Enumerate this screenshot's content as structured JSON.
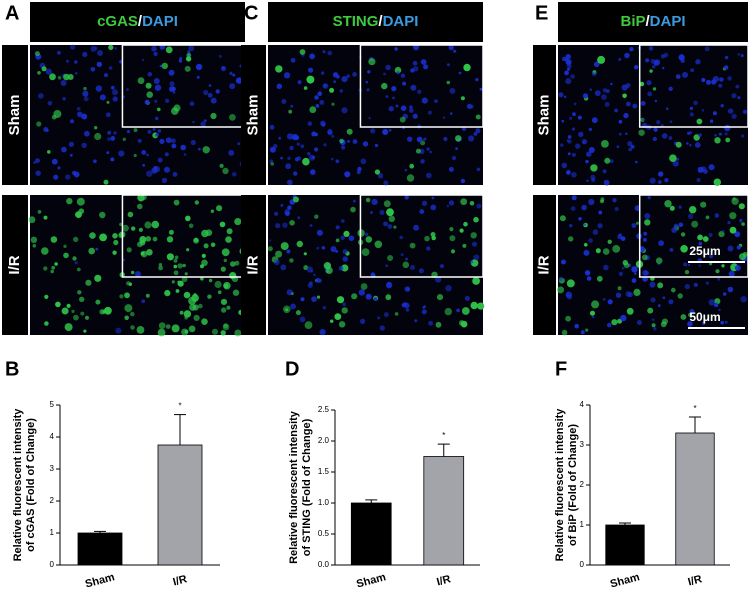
{
  "panels": {
    "labels": [
      "A",
      "B",
      "C",
      "D",
      "E",
      "F"
    ],
    "headers": [
      {
        "marker": "cGAS",
        "sep": "/",
        "stain": "DAPI"
      },
      {
        "marker": "STING",
        "sep": "/",
        "stain": "DAPI"
      },
      {
        "marker": "BiP",
        "sep": "/",
        "stain": "DAPI"
      }
    ],
    "rows": [
      "Sham",
      "I/R"
    ],
    "scale_bars": [
      "25μm",
      "50μm"
    ]
  },
  "chart_data": [
    {
      "type": "bar",
      "ylabel": [
        "Relative fluorescent intensity",
        "of cGAS (Fold of Change)"
      ],
      "categories": [
        "Sham",
        "I/R"
      ],
      "values": [
        1.0,
        3.75
      ],
      "errors": [
        0.05,
        0.95
      ],
      "colors": [
        "#000000",
        "#a3a3aa"
      ],
      "annotations": [
        null,
        "*"
      ],
      "ylim": [
        0,
        5
      ],
      "yticks": [
        0,
        1,
        2,
        3,
        4,
        5
      ]
    },
    {
      "type": "bar",
      "ylabel": [
        "Relative fluorescent intensity",
        "of STING (Fold of Change)"
      ],
      "categories": [
        "Sham",
        "I/R"
      ],
      "values": [
        1.0,
        1.75
      ],
      "errors": [
        0.05,
        0.2
      ],
      "colors": [
        "#000000",
        "#a3a3aa"
      ],
      "annotations": [
        null,
        "*"
      ],
      "ylim": [
        0,
        2.5
      ],
      "yticks": [
        {
          "value": 0,
          "label": "0.0"
        },
        0.5,
        {
          "value": 1,
          "label": "1.0"
        },
        1.5,
        {
          "value": 2,
          "label": "2.0"
        },
        2.5
      ]
    },
    {
      "type": "bar",
      "ylabel": [
        "Relative fluorescent intensity",
        "of BiP (Fold of Change)"
      ],
      "categories": [
        "Sham",
        "I/R"
      ],
      "values": [
        1.0,
        3.3
      ],
      "errors": [
        0.05,
        0.4
      ],
      "colors": [
        "#000000",
        "#a3a3aa"
      ],
      "annotations": [
        null,
        "*"
      ],
      "ylim": [
        0,
        4
      ],
      "yticks": [
        0,
        1,
        2,
        3,
        4
      ]
    }
  ]
}
